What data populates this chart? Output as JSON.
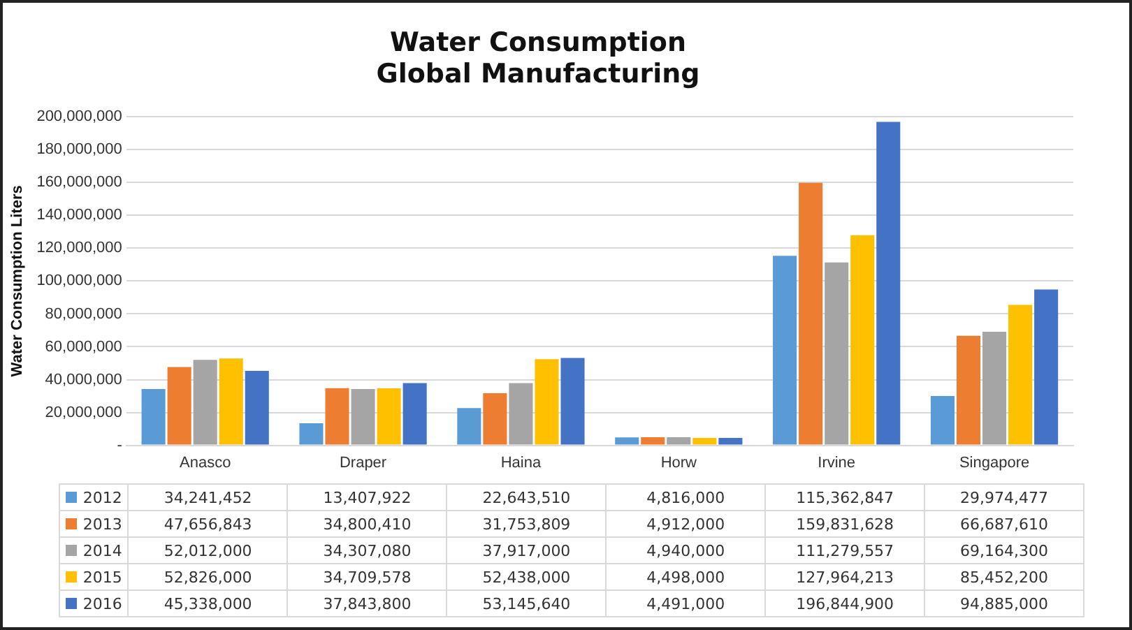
{
  "chart_data": {
    "type": "bar",
    "title": [
      "Water Consumption",
      "Global Manufacturing"
    ],
    "ylabel": "Water Consumption Liters",
    "categories": [
      "Anasco",
      "Draper",
      "Haina",
      "Horw",
      "Irvine",
      "Singapore"
    ],
    "series": [
      {
        "name": "2012",
        "color": "#5b9bd5",
        "values": [
          34241452,
          13407922,
          22643510,
          4816000,
          115362847,
          29974477
        ],
        "value_labels": [
          "34,241,452",
          "13,407,922",
          "22,643,510",
          "4,816,000",
          "115,362,847",
          "29,974,477"
        ]
      },
      {
        "name": "2013",
        "color": "#ed7d31",
        "values": [
          47656843,
          34800410,
          31753809,
          4912000,
          159831628,
          66687610
        ],
        "value_labels": [
          "47,656,843",
          "34,800,410",
          "31,753,809",
          "4,912,000",
          "159,831,628",
          "66,687,610"
        ]
      },
      {
        "name": "2014",
        "color": "#a5a5a5",
        "values": [
          52012000,
          34307080,
          37917000,
          4940000,
          111279557,
          69164300
        ],
        "value_labels": [
          "52,012,000",
          "34,307,080",
          "37,917,000",
          "4,940,000",
          "111,279,557",
          "69,164,300"
        ]
      },
      {
        "name": "2015",
        "color": "#ffc000",
        "values": [
          52826000,
          34709578,
          52438000,
          4498000,
          127964213,
          85452200
        ],
        "value_labels": [
          "52,826,000",
          "34,709,578",
          "52,438,000",
          "4,498,000",
          "127,964,213",
          "85,452,200"
        ]
      },
      {
        "name": "2016",
        "color": "#4472c4",
        "values": [
          45338000,
          37843800,
          53145640,
          4491000,
          196844900,
          94885000
        ],
        "value_labels": [
          "45,338,000",
          "37,843,800",
          "53,145,640",
          "4,491,000",
          "196,844,900",
          "94,885,000"
        ]
      }
    ],
    "ylim": [
      0,
      200000000
    ],
    "yticks": [
      {
        "value": 0,
        "label": "-"
      },
      {
        "value": 20000000,
        "label": "20,000,000"
      },
      {
        "value": 40000000,
        "label": "40,000,000"
      },
      {
        "value": 60000000,
        "label": "60,000,000"
      },
      {
        "value": 80000000,
        "label": "80,000,000"
      },
      {
        "value": 100000000,
        "label": "100,000,000"
      },
      {
        "value": 120000000,
        "label": "120,000,000"
      },
      {
        "value": 140000000,
        "label": "140,000,000"
      },
      {
        "value": 160000000,
        "label": "160,000,000"
      },
      {
        "value": 180000000,
        "label": "180,000,000"
      },
      {
        "value": 200000000,
        "label": "200,000,000"
      }
    ],
    "grid": "y",
    "legend": "bottom"
  }
}
